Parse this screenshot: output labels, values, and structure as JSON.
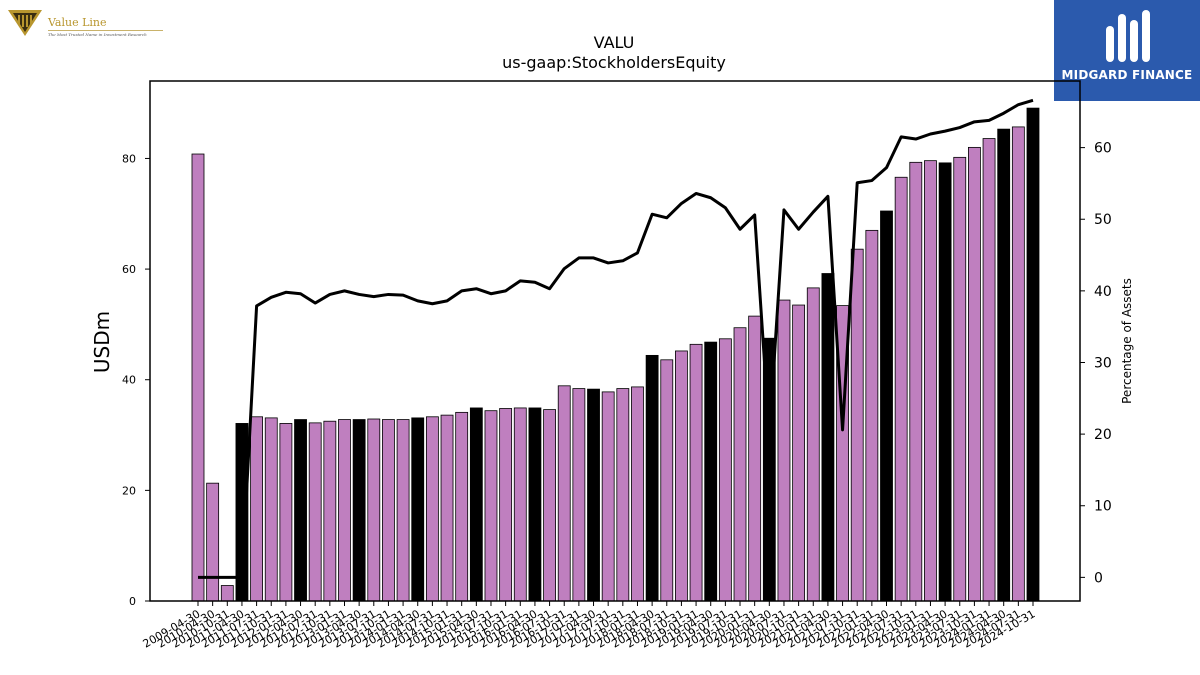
{
  "logos": {
    "value_line": {
      "name": "Value Line",
      "tagline": "The Most Trusted Name in Investment Research",
      "color": "#b8962e"
    },
    "midgard": {
      "name": "MIDGARD FINANCE",
      "bg": "#2b5aad"
    }
  },
  "chart_data": {
    "type": "bar",
    "title": "VALU",
    "subtitle": "us-gaap:StockholdersEquity",
    "ylabel": "USDm",
    "y2label": "Percentage of Assets",
    "ylim": [
      0,
      94
    ],
    "y2lim": [
      -3.3,
      69.3
    ],
    "yticks": [
      0,
      20,
      40,
      60,
      80
    ],
    "y2ticks": [
      0,
      10,
      20,
      30,
      40,
      50,
      60
    ],
    "colors": {
      "quarter": "#bf7fbf",
      "annual": "#000000",
      "line": "#000000"
    },
    "categories": [
      "2009-04-30",
      "2010-04-30",
      "2010-10-31",
      "2011-04-30",
      "2011-07-31",
      "2011-10-31",
      "2012-01-31",
      "2012-04-30",
      "2012-07-31",
      "2012-10-31",
      "2013-01-31",
      "2013-04-30",
      "2013-07-31",
      "2013-10-31",
      "2014-01-31",
      "2014-04-30",
      "2014-07-31",
      "2014-10-31",
      "2015-01-31",
      "2015-04-30",
      "2015-07-31",
      "2015-10-31",
      "2016-01-31",
      "2016-04-30",
      "2016-07-31",
      "2016-10-31",
      "2017-01-31",
      "2017-04-30",
      "2017-07-31",
      "2017-10-31",
      "2018-01-31",
      "2018-04-30",
      "2018-07-31",
      "2018-10-31",
      "2019-01-31",
      "2019-04-30",
      "2019-07-31",
      "2019-10-31",
      "2020-01-31",
      "2020-04-30",
      "2020-07-31",
      "2020-10-31",
      "2021-01-31",
      "2021-04-30",
      "2021-07-31",
      "2021-10-31",
      "2022-01-31",
      "2022-04-30",
      "2022-07-31",
      "2022-10-31",
      "2023-01-31",
      "2023-04-30",
      "2023-07-31",
      "2023-10-31",
      "2024-01-31",
      "2024-04-30",
      "2024-07-31",
      "2024-10-31"
    ],
    "tick_labels": [
      "2009-04-30",
      "2010-04-30",
      "2010-10-31",
      "2011-04-30",
      "2011-07-31",
      "2011-10-31",
      "2012-01-31",
      "2012-04-30",
      "2012-07-31",
      "2012-10-31",
      "2013-01-31",
      "2013-04-30",
      "2013-07-31",
      "2013-10-31",
      "2014-01-31",
      "2014-04-30",
      "2014-07-31",
      "2014-10-31",
      "2015-01-31",
      "2015-04-30",
      "2015-07-31",
      "2015-10-31",
      "2016-01-31",
      "2016-04-30",
      "2016-07-31",
      "2016-10-31",
      "2017-01-31",
      "2017-04-30",
      "2017-07-31",
      "2017-10-31",
      "2018-01-31",
      "2018-04-30",
      "2018-07-31",
      "2018-10-31",
      "2019-01-31",
      "2019-04-30",
      "2019-07-31",
      "2019-10-31",
      "2020-01-31",
      "2020-04-30",
      "2020-07-31",
      "2020-10-31",
      "2021-01-31",
      "2021-04-30",
      "2021-07-31",
      "2021-10-31",
      "2022-01-31",
      "2022-04-30",
      "2022-07-31",
      "2022-10-31",
      "2023-01-31",
      "2023-04-30",
      "2023-07-31",
      "2023-10-31",
      "2024-01-31",
      "2024-04-30",
      "2024-07-31",
      "2024-10-31"
    ],
    "values": [
      80.8,
      21.3,
      2.8,
      32.1,
      33.3,
      33.1,
      32.1,
      32.8,
      32.2,
      32.5,
      32.8,
      32.8,
      32.9,
      32.8,
      32.8,
      33.1,
      33.3,
      33.6,
      34.1,
      34.9,
      34.4,
      34.8,
      34.9,
      34.9,
      34.6,
      38.9,
      38.4,
      38.3,
      37.8,
      38.4,
      38.7,
      44.4,
      43.6,
      45.2,
      46.4,
      46.8,
      47.4,
      49.4,
      51.5,
      47.5,
      54.4,
      53.5,
      56.6,
      59.2,
      53.4,
      63.6,
      67.0,
      70.5,
      76.6,
      79.3,
      79.6,
      79.2,
      80.2,
      82.0,
      83.6,
      85.3,
      85.7,
      89.1
    ],
    "annual": [
      false,
      false,
      false,
      true,
      false,
      false,
      false,
      true,
      false,
      false,
      false,
      true,
      false,
      false,
      false,
      true,
      false,
      false,
      false,
      true,
      false,
      false,
      false,
      true,
      false,
      false,
      false,
      true,
      false,
      false,
      false,
      true,
      false,
      false,
      false,
      true,
      false,
      false,
      false,
      true,
      false,
      false,
      false,
      true,
      false,
      false,
      false,
      true,
      false,
      false,
      false,
      true,
      false,
      false,
      false,
      true,
      false,
      true
    ],
    "pct_assets": [
      0,
      0,
      0,
      0,
      37.9,
      39.1,
      39.8,
      39.6,
      38.3,
      39.5,
      40.0,
      39.5,
      39.2,
      39.5,
      39.4,
      38.6,
      38.2,
      38.6,
      40.0,
      40.3,
      39.6,
      40.0,
      41.4,
      41.2,
      40.3,
      43.1,
      44.6,
      44.6,
      43.9,
      44.2,
      45.3,
      50.7,
      50.2,
      52.2,
      53.6,
      53.0,
      51.6,
      48.6,
      50.6,
      20.0,
      51.3,
      48.6,
      51.0,
      53.2,
      20.6,
      55.1,
      55.4,
      57.2,
      61.5,
      61.2,
      61.9,
      62.3,
      62.8,
      63.6,
      63.8,
      64.8,
      66.0,
      66.6
    ]
  }
}
